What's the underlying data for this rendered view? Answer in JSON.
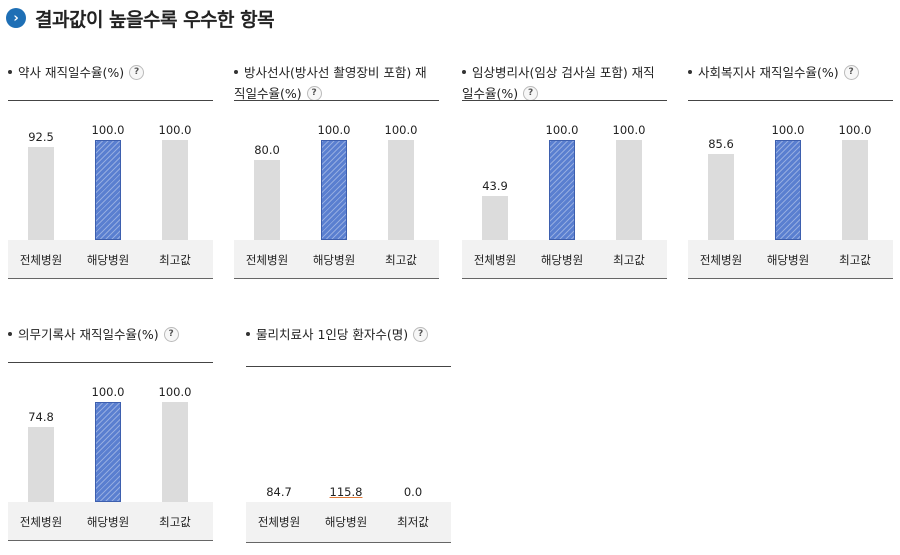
{
  "header": {
    "title": "결과값이 높을수록 우수한 항목",
    "icon": "chevron-right-icon"
  },
  "colors": {
    "accent": "#1e6fb5",
    "highlight_bar": "#5a7fd0",
    "neutral_bar": "#dcdcdc"
  },
  "chart_data": [
    {
      "type": "bar",
      "title": "약사 재직일수율(%)",
      "categories": [
        "전체병원",
        "해당병원",
        "최고값"
      ],
      "values": [
        92.5,
        100.0,
        100.0
      ],
      "labels": [
        "92.5",
        "100.0",
        "100.0"
      ],
      "highlight_index": 1,
      "ylim": [
        0,
        100
      ]
    },
    {
      "type": "bar",
      "title": "방사선사(방사선 촬영장비 포함) 재직일수율(%)",
      "categories": [
        "전체병원",
        "해당병원",
        "최고값"
      ],
      "values": [
        80.0,
        100.0,
        100.0
      ],
      "labels": [
        "80.0",
        "100.0",
        "100.0"
      ],
      "highlight_index": 1,
      "ylim": [
        0,
        100
      ]
    },
    {
      "type": "bar",
      "title": "임상병리사(임상 검사실 포함) 재직일수율(%)",
      "categories": [
        "전체병원",
        "해당병원",
        "최고값"
      ],
      "values": [
        43.9,
        100.0,
        100.0
      ],
      "labels": [
        "43.9",
        "100.0",
        "100.0"
      ],
      "highlight_index": 1,
      "ylim": [
        0,
        100
      ]
    },
    {
      "type": "bar",
      "title": "사회복지사 재직일수율(%)",
      "categories": [
        "전체병원",
        "해당병원",
        "최고값"
      ],
      "values": [
        85.6,
        100.0,
        100.0
      ],
      "labels": [
        "85.6",
        "100.0",
        "100.0"
      ],
      "highlight_index": 1,
      "ylim": [
        0,
        100
      ]
    },
    {
      "type": "bar",
      "title": "의무기록사 재직일수율(%)",
      "categories": [
        "전체병원",
        "해당병원",
        "최고값"
      ],
      "values": [
        74.8,
        100.0,
        100.0
      ],
      "labels": [
        "74.8",
        "100.0",
        "100.0"
      ],
      "highlight_index": 1,
      "ylim": [
        0,
        100
      ]
    },
    {
      "type": "bar",
      "title": "물리치료사 1인당 환자수(명)",
      "categories": [
        "전체병원",
        "해당병원",
        "최저값"
      ],
      "values": [
        84.7,
        115.8,
        0.0
      ],
      "labels": [
        "84.7",
        "115.8",
        "0.0"
      ],
      "highlight_index": 1
    }
  ]
}
